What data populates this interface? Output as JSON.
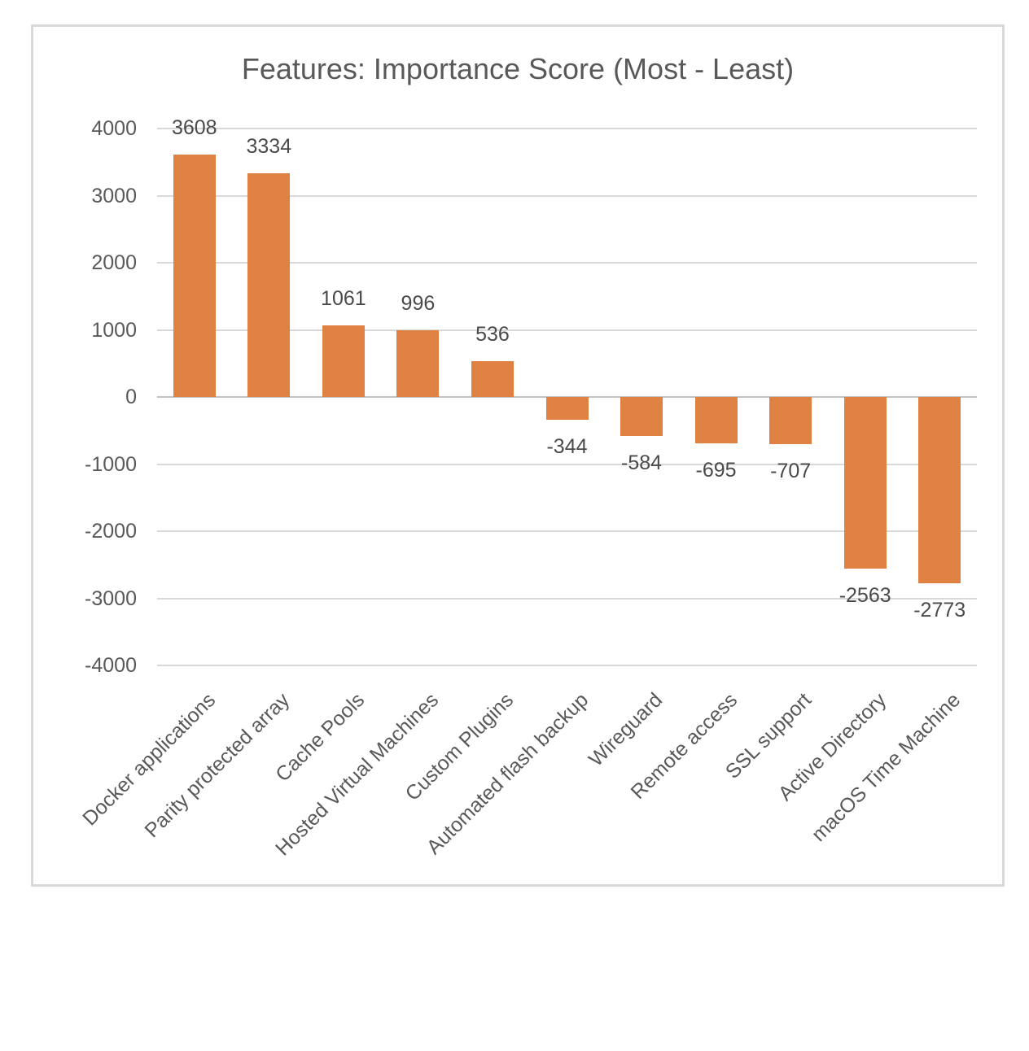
{
  "chart_data": {
    "type": "bar",
    "title": "Features: Importance Score (Most - Least)",
    "categories": [
      "Docker applications",
      "Parity protected array",
      "Cache Pools",
      "Hosted Virtual Machines",
      "Custom Plugins",
      "Automated flash backup",
      "Wireguard",
      "Remote access",
      "SSL support",
      "Active Directory",
      "macOS Time Machine"
    ],
    "values": [
      3608,
      3334,
      1061,
      996,
      536,
      -344,
      -584,
      -695,
      -707,
      -2563,
      -2773
    ],
    "data_labels": [
      "3608",
      "3334",
      "1061",
      "996",
      "536",
      "-344",
      "-584",
      "-695",
      "-707",
      "-2563",
      "-2773"
    ],
    "xlabel": "",
    "ylabel": "",
    "ylim": [
      -4000,
      4000
    ],
    "y_ticks": [
      4000,
      3000,
      2000,
      1000,
      0,
      -1000,
      -2000,
      -3000,
      -4000
    ],
    "grid": true,
    "legend": "none",
    "colors": {
      "bar": "#df8142",
      "gridline": "#d9d9d9",
      "zero_axis": "#c0c0c0",
      "tick_label": "#595959",
      "data_label": "#4a4a4a",
      "title": "#595959",
      "frame_border": "#d9d9d9",
      "background": "#ffffff"
    }
  }
}
